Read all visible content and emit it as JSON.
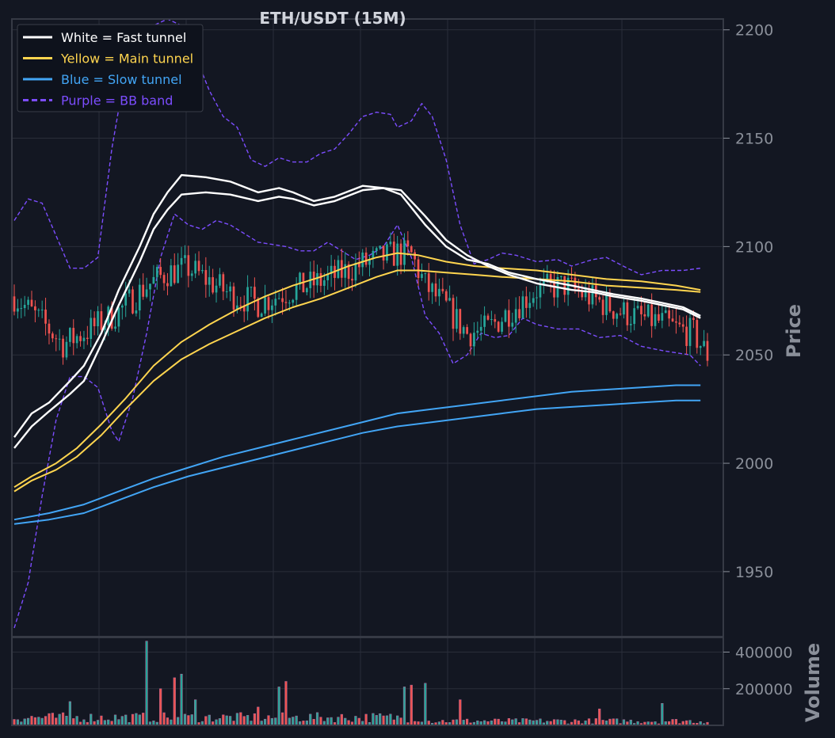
{
  "chart_data": {
    "type": "candlestick",
    "title": "ETH/USDT (15M)",
    "ylabel": "Price",
    "volume_label": "Volume",
    "ylim": [
      1920,
      2205
    ],
    "yticks": [
      1950,
      2000,
      2050,
      2100,
      2150,
      2200
    ],
    "volume_ylim": [
      0,
      480000
    ],
    "volume_ticks": [
      200000,
      400000
    ],
    "grid": true,
    "legend_placement": "top-left",
    "colors": {
      "background": "#131722",
      "up": "#26a69a",
      "down": "#ef5350",
      "fast": "#ffffff",
      "main": "#ffd54f",
      "slow": "#42a5f5",
      "bb": "#7c4dff",
      "grid": "#2a2e39",
      "frame": "#363a45"
    },
    "legend": [
      {
        "label": "White = Fast tunnel",
        "color": "#ffffff",
        "dashed": false
      },
      {
        "label": "Yellow = Main tunnel",
        "color": "#ffd54f",
        "dashed": false
      },
      {
        "label": "Blue = Slow tunnel",
        "color": "#42a5f5",
        "dashed": false
      },
      {
        "label": "Purple = BB band",
        "color": "#7c4dff",
        "dashed": true
      }
    ],
    "bars": 200,
    "close": [
      [
        0,
        2077
      ],
      [
        8,
        2065
      ],
      [
        14,
        2055
      ],
      [
        22,
        2062
      ],
      [
        30,
        2070
      ],
      [
        38,
        2082
      ],
      [
        44,
        2088
      ],
      [
        50,
        2090
      ],
      [
        55,
        2085
      ],
      [
        62,
        2078
      ],
      [
        70,
        2074
      ],
      [
        80,
        2080
      ],
      [
        90,
        2085
      ],
      [
        100,
        2092
      ],
      [
        110,
        2097
      ],
      [
        114,
        2096
      ],
      [
        118,
        2082
      ],
      [
        124,
        2072
      ],
      [
        130,
        2060
      ],
      [
        136,
        2062
      ],
      [
        142,
        2070
      ],
      [
        150,
        2080
      ],
      [
        158,
        2082
      ],
      [
        166,
        2076
      ],
      [
        174,
        2070
      ],
      [
        180,
        2067
      ],
      [
        186,
        2065
      ],
      [
        190,
        2062
      ],
      [
        195,
        2060
      ],
      [
        199,
        2050
      ]
    ],
    "fast_upper": [
      [
        0,
        2012
      ],
      [
        5,
        2023
      ],
      [
        10,
        2028
      ],
      [
        16,
        2038
      ],
      [
        20,
        2045
      ],
      [
        25,
        2060
      ],
      [
        30,
        2080
      ],
      [
        36,
        2100
      ],
      [
        40,
        2115
      ],
      [
        44,
        2125
      ],
      [
        48,
        2133
      ],
      [
        55,
        2132
      ],
      [
        62,
        2130
      ],
      [
        70,
        2125
      ],
      [
        76,
        2127
      ],
      [
        80,
        2125
      ],
      [
        86,
        2121
      ],
      [
        92,
        2123
      ],
      [
        100,
        2128
      ],
      [
        106,
        2127
      ],
      [
        111,
        2124
      ],
      [
        118,
        2110
      ],
      [
        124,
        2100
      ],
      [
        130,
        2094
      ],
      [
        136,
        2092
      ],
      [
        142,
        2088
      ],
      [
        150,
        2085
      ],
      [
        160,
        2082
      ],
      [
        166,
        2080
      ],
      [
        172,
        2078
      ],
      [
        180,
        2076
      ],
      [
        186,
        2074
      ],
      [
        192,
        2072
      ],
      [
        197,
        2068
      ]
    ],
    "fast_lower": [
      [
        0,
        2007
      ],
      [
        5,
        2017
      ],
      [
        10,
        2024
      ],
      [
        16,
        2032
      ],
      [
        20,
        2038
      ],
      [
        25,
        2055
      ],
      [
        30,
        2073
      ],
      [
        36,
        2093
      ],
      [
        40,
        2108
      ],
      [
        44,
        2117
      ],
      [
        48,
        2124
      ],
      [
        55,
        2125
      ],
      [
        62,
        2124
      ],
      [
        70,
        2121
      ],
      [
        76,
        2123
      ],
      [
        80,
        2122
      ],
      [
        86,
        2119
      ],
      [
        92,
        2121
      ],
      [
        100,
        2126
      ],
      [
        106,
        2127
      ],
      [
        111,
        2126
      ],
      [
        118,
        2114
      ],
      [
        124,
        2103
      ],
      [
        130,
        2096
      ],
      [
        136,
        2091
      ],
      [
        142,
        2087
      ],
      [
        150,
        2083
      ],
      [
        160,
        2080
      ],
      [
        166,
        2079
      ],
      [
        172,
        2077
      ],
      [
        180,
        2075
      ],
      [
        186,
        2073
      ],
      [
        192,
        2071
      ],
      [
        197,
        2067
      ]
    ],
    "main_upper": [
      [
        0,
        1989
      ],
      [
        5,
        1994
      ],
      [
        12,
        2000
      ],
      [
        18,
        2007
      ],
      [
        25,
        2018
      ],
      [
        32,
        2030
      ],
      [
        40,
        2045
      ],
      [
        48,
        2056
      ],
      [
        56,
        2064
      ],
      [
        64,
        2071
      ],
      [
        72,
        2077
      ],
      [
        80,
        2082
      ],
      [
        88,
        2086
      ],
      [
        96,
        2091
      ],
      [
        104,
        2095
      ],
      [
        110,
        2097
      ],
      [
        116,
        2096
      ],
      [
        124,
        2093
      ],
      [
        132,
        2091
      ],
      [
        140,
        2090
      ],
      [
        150,
        2089
      ],
      [
        160,
        2087
      ],
      [
        170,
        2085
      ],
      [
        180,
        2084
      ],
      [
        190,
        2082
      ],
      [
        197,
        2080
      ]
    ],
    "main_lower": [
      [
        0,
        1987
      ],
      [
        5,
        1992
      ],
      [
        12,
        1997
      ],
      [
        18,
        2003
      ],
      [
        25,
        2013
      ],
      [
        32,
        2025
      ],
      [
        40,
        2038
      ],
      [
        48,
        2048
      ],
      [
        56,
        2055
      ],
      [
        64,
        2061
      ],
      [
        72,
        2067
      ],
      [
        80,
        2072
      ],
      [
        88,
        2076
      ],
      [
        96,
        2081
      ],
      [
        104,
        2086
      ],
      [
        110,
        2089
      ],
      [
        116,
        2089
      ],
      [
        124,
        2088
      ],
      [
        132,
        2087
      ],
      [
        140,
        2086
      ],
      [
        150,
        2085
      ],
      [
        160,
        2084
      ],
      [
        170,
        2082
      ],
      [
        180,
        2081
      ],
      [
        190,
        2080
      ],
      [
        197,
        2079
      ]
    ],
    "slow_upper": [
      [
        0,
        1974
      ],
      [
        10,
        1977
      ],
      [
        20,
        1981
      ],
      [
        30,
        1987
      ],
      [
        40,
        1993
      ],
      [
        50,
        1998
      ],
      [
        60,
        2003
      ],
      [
        70,
        2007
      ],
      [
        80,
        2011
      ],
      [
        90,
        2015
      ],
      [
        100,
        2019
      ],
      [
        110,
        2023
      ],
      [
        120,
        2025
      ],
      [
        130,
        2027
      ],
      [
        140,
        2029
      ],
      [
        150,
        2031
      ],
      [
        160,
        2033
      ],
      [
        170,
        2034
      ],
      [
        180,
        2035
      ],
      [
        190,
        2036
      ],
      [
        197,
        2036
      ]
    ],
    "slow_lower": [
      [
        0,
        1972
      ],
      [
        10,
        1974
      ],
      [
        20,
        1977
      ],
      [
        30,
        1983
      ],
      [
        40,
        1989
      ],
      [
        50,
        1994
      ],
      [
        60,
        1998
      ],
      [
        70,
        2002
      ],
      [
        80,
        2006
      ],
      [
        90,
        2010
      ],
      [
        100,
        2014
      ],
      [
        110,
        2017
      ],
      [
        120,
        2019
      ],
      [
        130,
        2021
      ],
      [
        140,
        2023
      ],
      [
        150,
        2025
      ],
      [
        160,
        2026
      ],
      [
        170,
        2027
      ],
      [
        180,
        2028
      ],
      [
        190,
        2029
      ],
      [
        197,
        2029
      ]
    ],
    "bb_upper": [
      [
        0,
        2112
      ],
      [
        4,
        2122
      ],
      [
        8,
        2120
      ],
      [
        12,
        2105
      ],
      [
        16,
        2090
      ],
      [
        20,
        2090
      ],
      [
        24,
        2095
      ],
      [
        28,
        2145
      ],
      [
        32,
        2182
      ],
      [
        36,
        2192
      ],
      [
        40,
        2202
      ],
      [
        44,
        2205
      ],
      [
        48,
        2202
      ],
      [
        52,
        2188
      ],
      [
        56,
        2172
      ],
      [
        60,
        2160
      ],
      [
        64,
        2155
      ],
      [
        68,
        2140
      ],
      [
        72,
        2137
      ],
      [
        76,
        2141
      ],
      [
        80,
        2139
      ],
      [
        84,
        2139
      ],
      [
        88,
        2143
      ],
      [
        92,
        2145
      ],
      [
        96,
        2152
      ],
      [
        100,
        2160
      ],
      [
        104,
        2162
      ],
      [
        108,
        2161
      ],
      [
        110,
        2155
      ],
      [
        114,
        2158
      ],
      [
        117,
        2166
      ],
      [
        120,
        2160
      ],
      [
        124,
        2140
      ],
      [
        128,
        2110
      ],
      [
        132,
        2092
      ],
      [
        136,
        2094
      ],
      [
        140,
        2097
      ],
      [
        144,
        2096
      ],
      [
        150,
        2093
      ],
      [
        156,
        2094
      ],
      [
        160,
        2091
      ],
      [
        166,
        2094
      ],
      [
        170,
        2095
      ],
      [
        176,
        2090
      ],
      [
        180,
        2087
      ],
      [
        186,
        2089
      ],
      [
        192,
        2089
      ],
      [
        197,
        2090
      ]
    ],
    "bb_lower": [
      [
        0,
        1924
      ],
      [
        4,
        1945
      ],
      [
        8,
        1985
      ],
      [
        12,
        2020
      ],
      [
        16,
        2040
      ],
      [
        20,
        2040
      ],
      [
        24,
        2035
      ],
      [
        28,
        2015
      ],
      [
        30,
        2010
      ],
      [
        34,
        2030
      ],
      [
        38,
        2060
      ],
      [
        42,
        2095
      ],
      [
        46,
        2115
      ],
      [
        50,
        2110
      ],
      [
        54,
        2108
      ],
      [
        58,
        2112
      ],
      [
        62,
        2110
      ],
      [
        66,
        2106
      ],
      [
        70,
        2102
      ],
      [
        74,
        2101
      ],
      [
        78,
        2100
      ],
      [
        82,
        2098
      ],
      [
        86,
        2098
      ],
      [
        90,
        2102
      ],
      [
        94,
        2098
      ],
      [
        98,
        2094
      ],
      [
        102,
        2096
      ],
      [
        106,
        2100
      ],
      [
        110,
        2110
      ],
      [
        114,
        2095
      ],
      [
        118,
        2068
      ],
      [
        122,
        2060
      ],
      [
        126,
        2046
      ],
      [
        130,
        2050
      ],
      [
        134,
        2060
      ],
      [
        138,
        2058
      ],
      [
        142,
        2059
      ],
      [
        146,
        2067
      ],
      [
        150,
        2064
      ],
      [
        156,
        2062
      ],
      [
        162,
        2062
      ],
      [
        168,
        2058
      ],
      [
        174,
        2059
      ],
      [
        180,
        2054
      ],
      [
        186,
        2052
      ],
      [
        190,
        2051
      ],
      [
        194,
        2050
      ],
      [
        197,
        2045
      ]
    ],
    "volume_spikes": [
      [
        16,
        130000
      ],
      [
        38,
        460000
      ],
      [
        42,
        200000
      ],
      [
        46,
        260000
      ],
      [
        48,
        280000
      ],
      [
        52,
        140000
      ],
      [
        70,
        100000
      ],
      [
        76,
        210000
      ],
      [
        78,
        240000
      ],
      [
        112,
        210000
      ],
      [
        114,
        220000
      ],
      [
        118,
        230000
      ],
      [
        128,
        140000
      ],
      [
        168,
        90000
      ],
      [
        186,
        120000
      ]
    ]
  }
}
